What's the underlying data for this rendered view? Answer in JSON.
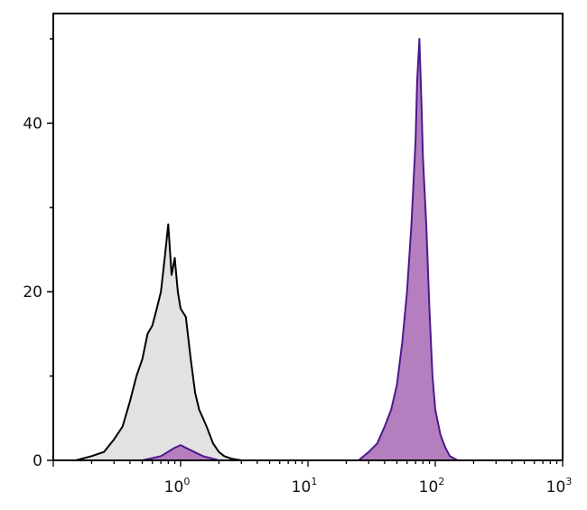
{
  "chart_data": {
    "type": "area",
    "x_scale": "log",
    "xlim": [
      0.1,
      1000
    ],
    "ylim": [
      0,
      53
    ],
    "grid": false,
    "legend": "none",
    "x_tick_labels": [
      {
        "base": "10",
        "exp": "0",
        "value": 1
      },
      {
        "base": "10",
        "exp": "1",
        "value": 10
      },
      {
        "base": "10",
        "exp": "2",
        "value": 100
      },
      {
        "base": "10",
        "exp": "3",
        "value": 1000
      }
    ],
    "y_tick_labels": [
      {
        "label": "0",
        "value": 0
      },
      {
        "label": "20",
        "value": 20
      },
      {
        "label": "40",
        "value": 40
      }
    ],
    "y_minor_ticks": [
      10,
      30,
      50
    ],
    "series": [
      {
        "fill": "#e2e2e2",
        "stroke": "#000000",
        "x": [
          0.15,
          0.2,
          0.25,
          0.3,
          0.35,
          0.4,
          0.45,
          0.5,
          0.55,
          0.6,
          0.65,
          0.7,
          0.75,
          0.8,
          0.85,
          0.9,
          0.95,
          1.0,
          1.1,
          1.2,
          1.3,
          1.4,
          1.5,
          1.6,
          1.8,
          2.0,
          2.2,
          2.5,
          3.0
        ],
        "y": [
          0,
          0.5,
          1,
          2.5,
          4,
          7,
          10,
          12,
          15,
          16,
          18,
          20,
          24,
          28,
          22,
          24,
          20,
          18,
          17,
          12,
          8,
          6,
          5,
          4,
          2,
          1,
          0.5,
          0.2,
          0
        ]
      },
      {
        "fill": "#b57ebf",
        "stroke": "#4b1a8c",
        "x": [
          25,
          30,
          35,
          40,
          45,
          50,
          55,
          60,
          65,
          70,
          72,
          75,
          78,
          80,
          85,
          90,
          95,
          100,
          110,
          120,
          130,
          150
        ],
        "y": [
          0,
          1,
          2,
          4,
          6,
          9,
          14,
          20,
          28,
          38,
          45,
          50,
          42,
          36,
          28,
          18,
          10,
          6,
          3,
          1.5,
          0.5,
          0
        ]
      },
      {
        "fill": "#b57ebf",
        "stroke": "#4b1a8c",
        "x": [
          0.5,
          0.7,
          0.9,
          1.0,
          1.2,
          1.5,
          2.0
        ],
        "y": [
          0,
          0.5,
          1.5,
          1.8,
          1.2,
          0.5,
          0
        ]
      }
    ]
  }
}
